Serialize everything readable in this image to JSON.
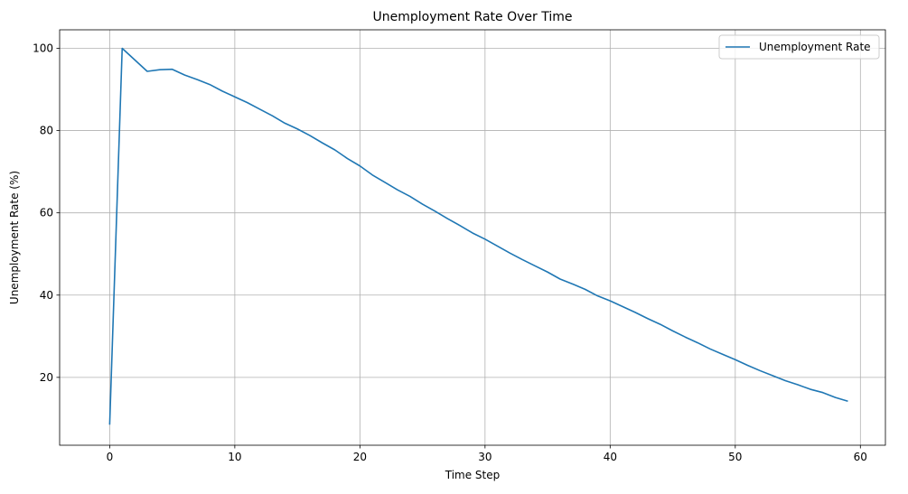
{
  "chart_data": {
    "type": "line",
    "title": "Unemployment Rate Over Time",
    "xlabel": "Time Step",
    "ylabel": "Unemployment Rate (%)",
    "xlim": [
      -4,
      62
    ],
    "ylim": [
      3.5,
      104.5
    ],
    "xticks": [
      0,
      10,
      20,
      30,
      40,
      50,
      60
    ],
    "yticks": [
      20,
      40,
      60,
      80,
      100
    ],
    "grid": true,
    "legend_position": "top-right",
    "series": [
      {
        "name": "Unemployment Rate",
        "color": "#1f77b4",
        "x": [
          0,
          1,
          2,
          3,
          4,
          5,
          6,
          7,
          8,
          9,
          10,
          11,
          12,
          13,
          14,
          15,
          16,
          17,
          18,
          19,
          20,
          21,
          22,
          23,
          24,
          25,
          26,
          27,
          28,
          29,
          30,
          31,
          32,
          33,
          34,
          35,
          36,
          37,
          38,
          39,
          40,
          41,
          42,
          43,
          44,
          45,
          46,
          47,
          48,
          49,
          50,
          51,
          52,
          53,
          54,
          55,
          56,
          57,
          58,
          59
        ],
        "values": [
          8.5,
          100,
          97.2,
          94.4,
          94.8,
          94.9,
          93.5,
          92.4,
          91.2,
          89.6,
          88.2,
          86.8,
          85.2,
          83.6,
          81.8,
          80.4,
          78.8,
          77.0,
          75.3,
          73.2,
          71.4,
          69.2,
          67.4,
          65.6,
          64.0,
          62.1,
          60.4,
          58.6,
          56.9,
          55.1,
          53.6,
          51.9,
          50.2,
          48.6,
          47.1,
          45.6,
          43.9,
          42.7,
          41.4,
          39.8,
          38.6,
          37.2,
          35.8,
          34.3,
          32.9,
          31.3,
          29.8,
          28.4,
          26.9,
          25.6,
          24.3,
          22.9,
          21.6,
          20.4,
          19.2,
          18.2,
          17.1,
          16.3,
          15.1,
          14.2
        ]
      }
    ]
  }
}
